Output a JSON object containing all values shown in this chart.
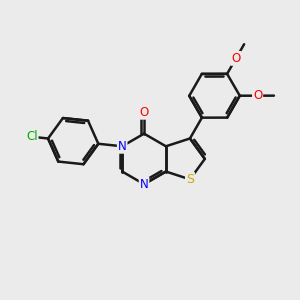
{
  "background_color": "#ebebeb",
  "bond_color": "#1a1a1a",
  "bond_width": 1.8,
  "N_color": "#0000ff",
  "O_color": "#ff0000",
  "S_color": "#ccaa00",
  "Cl_color": "#00aa00",
  "figsize": [
    3.0,
    3.0
  ],
  "dpi": 100,
  "xlim": [
    0,
    10
  ],
  "ylim": [
    0,
    10
  ]
}
